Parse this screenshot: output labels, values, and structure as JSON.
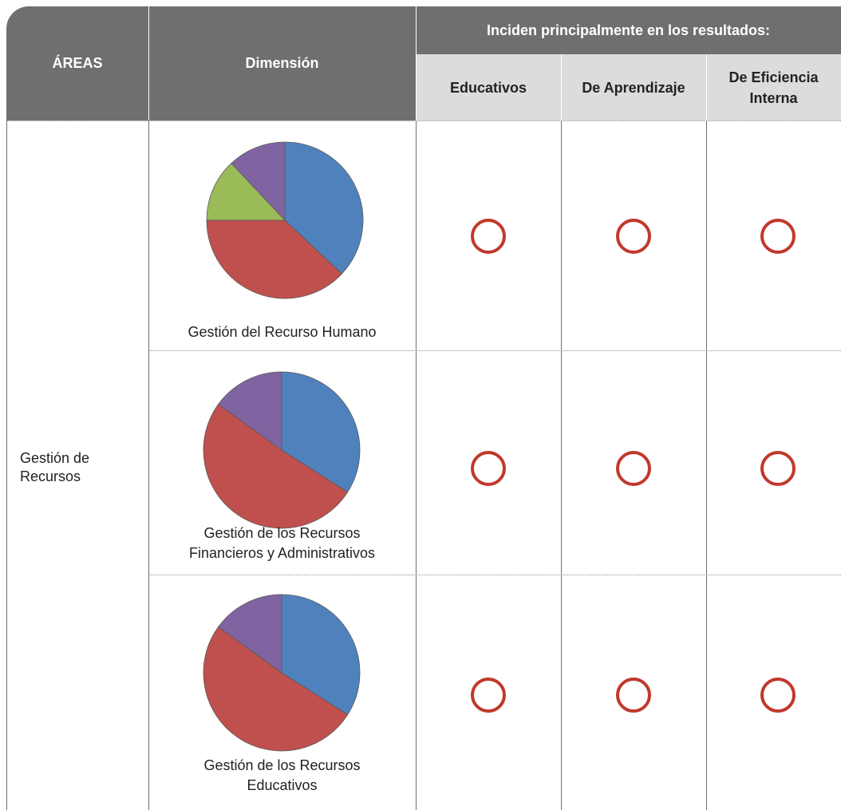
{
  "header": {
    "areas": "ÁREAS",
    "dimension": "Dimensión",
    "group": "Inciden principalmente en los resultados:",
    "cols": [
      "Educativos",
      "De Aprendizaje",
      "De Eficiencia Interna"
    ]
  },
  "area": {
    "name_line1": "Gestión de",
    "name_line2": "Recursos"
  },
  "rows": [
    {
      "label_line1": "Gestión del Recurso Humano",
      "label_line2": "",
      "marks": [
        "circle",
        "circle",
        "circle"
      ]
    },
    {
      "label_line1": "Gestión de los Recursos",
      "label_line2": "Financieros y Administrativos",
      "marks": [
        "circle",
        "circle",
        "circle"
      ]
    },
    {
      "label_line1": "Gestión de los Recursos",
      "label_line2": "Educativos",
      "marks": [
        "circle",
        "circle",
        "circle"
      ]
    }
  ],
  "colors": {
    "header_bg": "#6f6f6e",
    "subheader_bg": "#dcdcdc",
    "circle": "#c0392b",
    "pie_blue": "#4f81bd",
    "pie_red": "#c0504d",
    "pie_green": "#9bbb59",
    "pie_purple": "#8064a2"
  },
  "chart_data": [
    {
      "type": "pie",
      "values": [
        37,
        38,
        13,
        12
      ],
      "colors": [
        "#4f81bd",
        "#c0504d",
        "#9bbb59",
        "#8064a2"
      ]
    },
    {
      "type": "pie",
      "values": [
        34,
        51,
        15
      ],
      "colors": [
        "#4f81bd",
        "#c0504d",
        "#8064a2"
      ]
    },
    {
      "type": "pie",
      "values": [
        34,
        51,
        15
      ],
      "colors": [
        "#4f81bd",
        "#c0504d",
        "#8064a2"
      ]
    }
  ]
}
